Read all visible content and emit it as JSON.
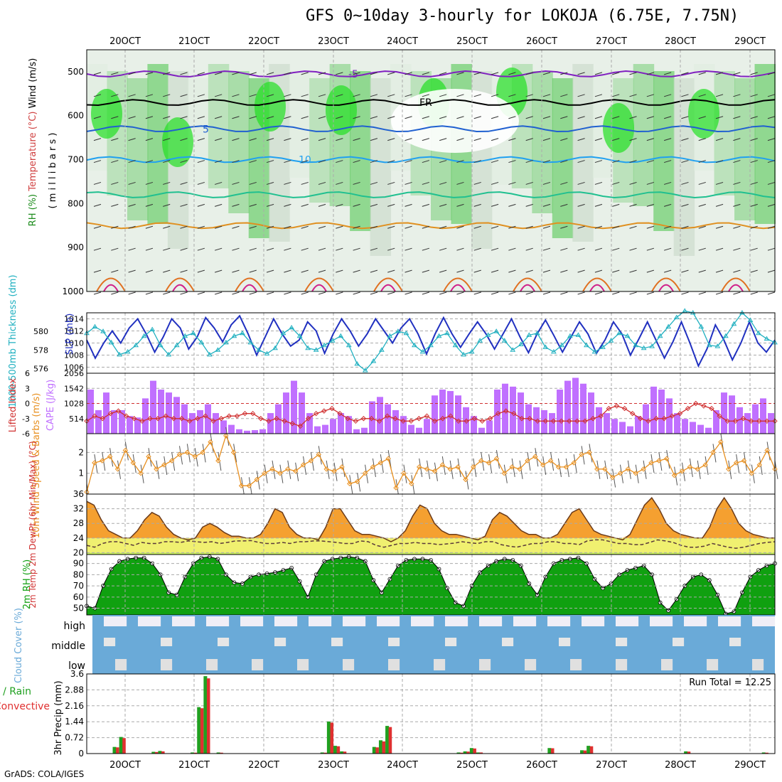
{
  "title": "GFS 0~10day 3-hourly for LOKOJA (6.75E, 7.75N)",
  "credit": "GrADS: COLA/IGES",
  "dates": [
    "20OCT",
    "21OCT",
    "22OCT",
    "23OCT",
    "24OCT",
    "25OCT",
    "26OCT",
    "27OCT",
    "28OCT",
    "29OCT"
  ],
  "colors": {
    "slp": "#2030c0",
    "thickness": "#20b0c0",
    "lifted_index": "#d03030",
    "cape": "#c070ff",
    "wind10m": "#e89020",
    "rh2m": "#10a010",
    "cloud": "#6aaad8",
    "rain": "#20a020",
    "convective": "#e03030"
  },
  "chart_data": [
    {
      "panel": "upper-air",
      "type": "heatmap",
      "ylabel_parts": [
        "RH (%)",
        "Temperature (°C)",
        "Wind (m/s)"
      ],
      "ylabel2": "( m i l l i b a r s )",
      "yticks": [
        500,
        600,
        700,
        800,
        900,
        1000
      ],
      "ylim": [
        1000,
        450
      ],
      "contour_labels": [
        "-5",
        "FR",
        "5",
        "10"
      ]
    },
    {
      "panel": "slp-thickness",
      "type": "line",
      "ylabel_left": "1000-500mb Thickness (dm)",
      "ylabel_right": "SLP (mb)",
      "yticks_left": [
        576,
        578,
        580
      ],
      "yticks_right": [
        1006,
        1008,
        1010,
        1012,
        1014
      ],
      "ylim_right": [
        1005,
        1015
      ],
      "ylim_left": [
        575.5,
        582
      ],
      "series": [
        {
          "name": "SLP (mb)",
          "values": [
            1010.5,
            1007.5,
            1010,
            1012,
            1010,
            1012.5,
            1014,
            1011.5,
            1008.5,
            1011,
            1014,
            1012.5,
            1009,
            1011,
            1014.2,
            1012.5,
            1010.2,
            1013,
            1014.5,
            1011.5,
            1008,
            1011,
            1014,
            1011.5,
            1009.5,
            1010.5,
            1013.5,
            1012,
            1008.3,
            1011.5,
            1014,
            1012,
            1009.5,
            1011.5,
            1014,
            1012,
            1010,
            1012.5,
            1014,
            1011.5,
            1008.2,
            1011.5,
            1014.2,
            1011.5,
            1009.3,
            1011.5,
            1013.5,
            1011.5,
            1009,
            1011.5,
            1014,
            1011,
            1008.4,
            1011.5,
            1013.8,
            1011.2,
            1008.5,
            1011,
            1013.5,
            1011.5,
            1008.3,
            1010.5,
            1013.5,
            1011.5,
            1008,
            1010.7,
            1013.5,
            1010.5,
            1007.5,
            1010.2,
            1013.5,
            1010,
            1006.2,
            1009,
            1013,
            1010.5,
            1007.2,
            1010,
            1013.5,
            1010,
            1008.5,
            1010.5
          ]
        },
        {
          "name": "1000-500mb Thickness (dm)",
          "values": [
            579.8,
            580.5,
            580,
            578.8,
            577.5,
            577.8,
            578.5,
            579.5,
            580.2,
            578.5,
            577.5,
            578.5,
            579.5,
            579.8,
            578.8,
            577.5,
            578,
            578.8,
            579.5,
            579.8,
            578.8,
            578,
            577.6,
            578.2,
            579.8,
            580.4,
            579.5,
            578.2,
            578,
            578.5,
            579,
            579.5,
            578.5,
            576.5,
            575.8,
            576.8,
            578,
            579.5,
            580,
            579.8,
            578.5,
            577.8,
            578.5,
            579.5,
            579.8,
            578.5,
            577.5,
            577.8,
            579,
            579.6,
            580,
            579,
            578,
            578.6,
            579.6,
            579.8,
            578.3,
            577.8,
            578.5,
            579.5,
            579.6,
            578.5,
            577.8,
            578.3,
            579,
            579.8,
            579.5,
            578.5,
            578.2,
            578.4,
            579.5,
            580.5,
            581.5,
            582.2,
            582,
            580.5,
            578.5,
            578.4,
            579.5,
            580.8,
            582,
            581.2,
            579.8,
            579.2,
            578.8
          ]
        }
      ]
    },
    {
      "panel": "cape-lifted-index",
      "type": "bar",
      "ylabel_left": "Lifted Index",
      "ylabel_right": "CAPE (J/kg)",
      "yticks_left": [
        -6,
        -3,
        0,
        3,
        6
      ],
      "yticks_right": [
        514,
        1028,
        1542,
        2056
      ],
      "ylim_left": [
        6,
        -6
      ],
      "ylim_right": [
        0,
        2056
      ],
      "series": [
        {
          "name": "CAPE (J/kg)",
          "values": [
            1500,
            800,
            1400,
            800,
            800,
            600,
            550,
            1200,
            1800,
            1500,
            1400,
            1250,
            1000,
            700,
            800,
            1000,
            700,
            450,
            300,
            150,
            100,
            120,
            150,
            700,
            1000,
            1400,
            1800,
            1400,
            700,
            250,
            300,
            500,
            700,
            600,
            150,
            200,
            1100,
            1250,
            1000,
            800,
            600,
            300,
            200,
            500,
            1300,
            1500,
            1450,
            1300,
            900,
            600,
            200,
            450,
            1500,
            1700,
            1600,
            1400,
            1000,
            900,
            800,
            700,
            1500,
            1800,
            1900,
            1700,
            1400,
            900,
            700,
            500,
            400,
            250,
            600,
            1000,
            1600,
            1500,
            1200,
            700,
            500,
            400,
            300,
            200,
            800,
            1400,
            1300,
            900,
            700,
            1000,
            1200,
            700
          ]
        },
        {
          "name": "Lifted Index",
          "values": [
            -3.5,
            -2.5,
            -3,
            -2,
            -1.5,
            -2.5,
            -3,
            -3.5,
            -3,
            -3,
            -2.5,
            -3,
            -3,
            -3.5,
            -3,
            -2.5,
            -3.5,
            -3,
            -2.5,
            -2.5,
            -2,
            -2,
            -3,
            -3.5,
            -3,
            -3.5,
            -4,
            -4.5,
            -3,
            -2,
            -1.5,
            -1,
            -2,
            -3,
            -3.5,
            -3,
            -3,
            -3.5,
            -2.5,
            -3,
            -3.5,
            -3.5,
            -3,
            -2.5,
            -3.5,
            -3,
            -2.5,
            -3.5,
            -3.5,
            -3,
            -3.5,
            -3,
            -2,
            -1.5,
            -2,
            -3,
            -3,
            -3.5,
            -3.5,
            -3.5,
            -3.5,
            -3.5,
            -3.5,
            -3.5,
            -3,
            -2.5,
            -1,
            -0.5,
            -1,
            -2,
            -3,
            -3.5,
            -3,
            -3,
            -2.5,
            -2,
            -1,
            0,
            -0.5,
            -1,
            -2.5,
            -3.5,
            -3.5,
            -3,
            -3.5,
            -3.5,
            -3.5,
            -3.5
          ]
        }
      ]
    },
    {
      "panel": "wind-10m",
      "type": "line",
      "ylabel": "10m Wind Speed & Barbs (m/s)",
      "yticks": [
        1,
        2
      ],
      "ylim": [
        0,
        2.9
      ],
      "values": [
        0.1,
        1.5,
        1.6,
        1.8,
        1.2,
        2.1,
        1.5,
        1.0,
        1.8,
        1.2,
        1.4,
        1.6,
        1.9,
        2.0,
        1.8,
        2.0,
        2.5,
        1.6,
        2.8,
        2.0,
        0.4,
        0.4,
        0.7,
        1.0,
        1.2,
        1.0,
        1.2,
        1.1,
        1.4,
        1.6,
        1.9,
        1.2,
        1.1,
        1.3,
        0.5,
        0.6,
        1.0,
        1.3,
        1.5,
        1.7,
        0.3,
        1.0,
        0.5,
        1.3,
        1.2,
        1.1,
        1.4,
        1.2,
        1.3,
        0.7,
        1.3,
        1.6,
        1.5,
        1.7,
        1.0,
        1.3,
        1.2,
        1.6,
        1.8,
        1.4,
        1.6,
        1.3,
        1.3,
        1.5,
        1.9,
        2.0,
        1.2,
        1.2,
        0.8,
        1.0,
        1.2,
        1.0,
        1.2,
        1.5,
        1.6,
        1.7,
        0.9,
        1.1,
        1.3,
        1.2,
        1.4,
        2.0,
        2.5,
        1.2,
        1.5,
        1.6,
        1.0,
        1.4,
        2.1,
        1.2
      ]
    },
    {
      "panel": "temp-dewpt",
      "type": "area",
      "ylabel": "2m Temp 2m DewPt (6hr Min/Max) (°C)",
      "yticks": [
        20,
        24,
        28,
        32,
        36
      ],
      "ylim": [
        19.5,
        36
      ],
      "series": [
        {
          "name": "2m Temp",
          "values": [
            34,
            33,
            29,
            26,
            25,
            24,
            24,
            26,
            29,
            31,
            30,
            27,
            25,
            24,
            23.5,
            24,
            27,
            28,
            27,
            25.5,
            24.5,
            24.5,
            24,
            24,
            25,
            28,
            32,
            31,
            27,
            25,
            24,
            24,
            23.5,
            27,
            32,
            32,
            29,
            26,
            25,
            25,
            24.5,
            24,
            23,
            24,
            26,
            30,
            33,
            32,
            28,
            26,
            25,
            25,
            24.5,
            24,
            23.5,
            24.5,
            29,
            31,
            30,
            28,
            26,
            25,
            25,
            24,
            24,
            25,
            28,
            31,
            32,
            29,
            26,
            25,
            24.5,
            24,
            23.5,
            25,
            29,
            33,
            35,
            32,
            28,
            26,
            25,
            24.5,
            24,
            24,
            27,
            32,
            35,
            32,
            28,
            26,
            25,
            24.5,
            24,
            24
          ]
        },
        {
          "name": "2m DewPt",
          "values": [
            22,
            21.5,
            22.5,
            23,
            23,
            22.5,
            22,
            22.8,
            22.5,
            22.5,
            23,
            23,
            22.8,
            23.2,
            23,
            22.8,
            23,
            22.5,
            22.8,
            23.2,
            23.2,
            23.3,
            22.8,
            22.5,
            22.5,
            22.8,
            22.5,
            23,
            23,
            23.2,
            23.2,
            23,
            22.8,
            22.5,
            22.5,
            23.2,
            23,
            22,
            21.5,
            22,
            22.5,
            22.5,
            22.8,
            22.5,
            22.5,
            22.2,
            22.4,
            22.6,
            23,
            22.7,
            22.5,
            23,
            23,
            22.2,
            21.8,
            21.5,
            22,
            22.5,
            22.5,
            23,
            23,
            22.5,
            22.5,
            22.2,
            23.2,
            23.5,
            23.5,
            23,
            22.5,
            22.5,
            22.2,
            22.2,
            22.8,
            23.5,
            23.2,
            22.8,
            22,
            21.5,
            21.5,
            21.8,
            22.5,
            22,
            21.5,
            21.2,
            21.5,
            22,
            22.5,
            22.8,
            23
          ]
        }
      ]
    },
    {
      "panel": "rh-2m",
      "type": "area",
      "ylabel": "2m RH (%)",
      "yticks": [
        50,
        60,
        70,
        80,
        90
      ],
      "ylim": [
        44,
        98
      ],
      "values": [
        52,
        50,
        70,
        85,
        92,
        94,
        95,
        95,
        90,
        80,
        64,
        62,
        78,
        90,
        95,
        96,
        94,
        80,
        73,
        72,
        78,
        80,
        81,
        82,
        84,
        86,
        74,
        60,
        80,
        92,
        94,
        95,
        96,
        95,
        92,
        75,
        64,
        76,
        88,
        93,
        94,
        94,
        93,
        85,
        68,
        55,
        52,
        70,
        82,
        88,
        92,
        94,
        93,
        88,
        72,
        62,
        78,
        90,
        93,
        94,
        95,
        90,
        76,
        68,
        72,
        80,
        84,
        86,
        88,
        80,
        55,
        48,
        58,
        70,
        78,
        80,
        75,
        62,
        45,
        47,
        64,
        78,
        84,
        88,
        90
      ]
    },
    {
      "panel": "cloud-cover",
      "type": "bar",
      "ylabel": "Cloud Cover (%)",
      "levels": [
        "high",
        "middle",
        "low"
      ]
    },
    {
      "panel": "precip",
      "type": "bar",
      "ylabel_left": "Total / Rain",
      "ylabel_left2": "Convective",
      "ylabel": "3hr Precip (mm)",
      "yticks": [
        0,
        0.72,
        1.44,
        2.16,
        2.88,
        3.6
      ],
      "ylim": [
        0,
        3.6
      ],
      "run_total_label": "Run Total = 12.25",
      "series": [
        {
          "name": "Total / Rain",
          "values": [
            0,
            0,
            0,
            0,
            0.3,
            0.75,
            0,
            0,
            0,
            0,
            0.08,
            0.12,
            0,
            0,
            0,
            0,
            0.05,
            2.1,
            3.5,
            0,
            0.05,
            0,
            0,
            0,
            0,
            0,
            0,
            0,
            0,
            0,
            0,
            0,
            0,
            0,
            0,
            0,
            0.05,
            1.45,
            0.35,
            0.1,
            0,
            0,
            0,
            0,
            0.3,
            0.6,
            1.25,
            0,
            0,
            0,
            0,
            0,
            0,
            0,
            0,
            0,
            0,
            0.05,
            0.1,
            0.25,
            0.05,
            0,
            0,
            0,
            0,
            0,
            0,
            0,
            0,
            0,
            0,
            0.25,
            0,
            0,
            0,
            0,
            0.15,
            0.35,
            0,
            0,
            0,
            0,
            0,
            0,
            0,
            0,
            0,
            0,
            0,
            0,
            0,
            0,
            0.1,
            0,
            0,
            0,
            0,
            0,
            0,
            0,
            0,
            0,
            0,
            0,
            0.05,
            0
          ]
        },
        {
          "name": "Convective",
          "values": [
            0,
            0,
            0,
            0,
            0.28,
            0.7,
            0,
            0,
            0,
            0,
            0.07,
            0.1,
            0,
            0,
            0,
            0,
            0.04,
            2.05,
            3.4,
            0,
            0.04,
            0,
            0,
            0,
            0,
            0,
            0,
            0,
            0,
            0,
            0,
            0,
            0,
            0,
            0,
            0,
            0.04,
            1.4,
            0.33,
            0.09,
            0,
            0,
            0,
            0,
            0.28,
            0.55,
            1.2,
            0,
            0,
            0,
            0,
            0,
            0,
            0,
            0,
            0,
            0,
            0.04,
            0.09,
            0.23,
            0.05,
            0,
            0,
            0,
            0,
            0,
            0,
            0,
            0,
            0,
            0,
            0.24,
            0,
            0,
            0,
            0,
            0.14,
            0.33,
            0,
            0,
            0,
            0,
            0,
            0,
            0,
            0,
            0,
            0,
            0,
            0,
            0,
            0,
            0.09,
            0,
            0,
            0,
            0,
            0,
            0,
            0,
            0,
            0,
            0,
            0,
            0.04,
            0
          ]
        }
      ]
    }
  ]
}
